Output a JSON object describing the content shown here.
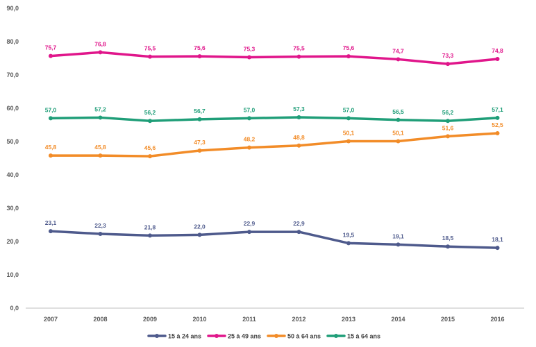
{
  "chart_data": {
    "type": "line",
    "categories": [
      "2007",
      "2008",
      "2009",
      "2010",
      "2011",
      "2012",
      "2013",
      "2014",
      "2015",
      "2016"
    ],
    "ylim": [
      0,
      90
    ],
    "yticks": [
      0,
      10,
      20,
      30,
      40,
      50,
      60,
      70,
      80,
      90
    ],
    "ytick_labels": [
      "0,0",
      "10,0",
      "20,0",
      "30,0",
      "40,0",
      "50,0",
      "60,0",
      "70,0",
      "80,0",
      "90,0"
    ],
    "grid": false,
    "legend_position": "bottom-center",
    "series": [
      {
        "name": "15 à 24 ans",
        "color": "#4e5a8c",
        "values": [
          23.1,
          22.3,
          21.8,
          22.0,
          22.9,
          22.9,
          19.5,
          19.1,
          18.5,
          18.1
        ],
        "labels": [
          "23,1",
          "22,3",
          "21,8",
          "22,0",
          "22,9",
          "22,9",
          "19,5",
          "19,1",
          "18,5",
          "18,1"
        ]
      },
      {
        "name": "25 à 49 ans",
        "color": "#e0168b",
        "values": [
          75.7,
          76.8,
          75.5,
          75.6,
          75.3,
          75.5,
          75.6,
          74.7,
          73.3,
          74.8
        ],
        "labels": [
          "75,7",
          "76,8",
          "75,5",
          "75,6",
          "75,3",
          "75,5",
          "75,6",
          "74,7",
          "73,3",
          "74,8"
        ]
      },
      {
        "name": "50 à 64 ans",
        "color": "#f28c28",
        "values": [
          45.8,
          45.8,
          45.6,
          47.3,
          48.2,
          48.8,
          50.1,
          50.1,
          51.6,
          52.5
        ],
        "labels": [
          "45,8",
          "45,8",
          "45,6",
          "47,3",
          "48,2",
          "48,8",
          "50,1",
          "50,1",
          "51,6",
          "52,5"
        ]
      },
      {
        "name": "15 à 64 ans",
        "color": "#1f9e78",
        "values": [
          57.0,
          57.2,
          56.2,
          56.7,
          57.0,
          57.3,
          57.0,
          56.5,
          56.2,
          57.1
        ],
        "labels": [
          "57,0",
          "57,2",
          "56,2",
          "56,7",
          "57,0",
          "57,3",
          "57,0",
          "56,5",
          "56,2",
          "57,1"
        ]
      }
    ]
  }
}
